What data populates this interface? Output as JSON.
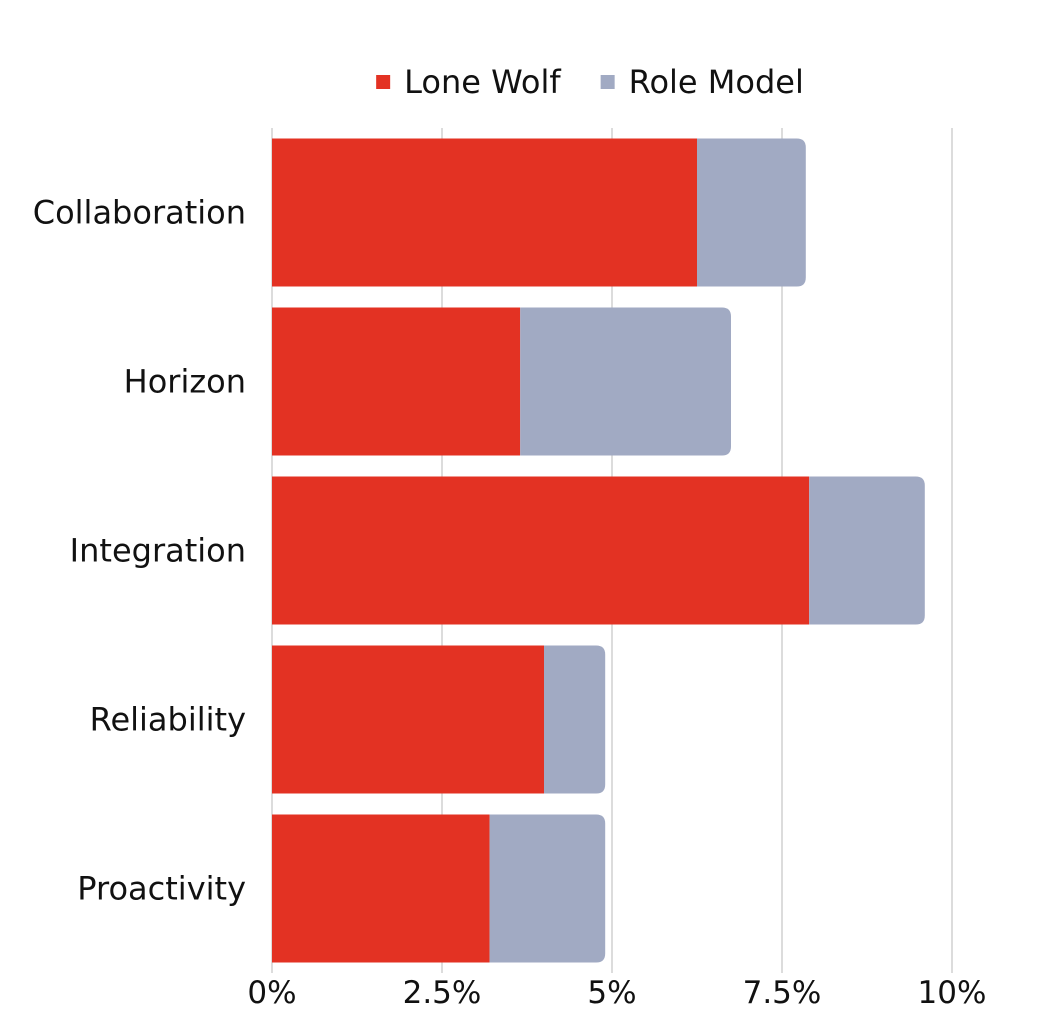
{
  "chart_data": {
    "type": "bar",
    "orientation": "horizontal",
    "stacked": true,
    "categories": [
      "Collaboration",
      "Horizon",
      "Integration",
      "Reliability",
      "Proactivity"
    ],
    "series": [
      {
        "name": "Lone Wolf",
        "color": "#e33223",
        "values": [
          6.25,
          3.65,
          7.9,
          4.0,
          3.2
        ]
      },
      {
        "name": "Role Model",
        "color": "#a1aac3",
        "values": [
          1.6,
          3.1,
          1.7,
          0.9,
          1.7
        ]
      }
    ],
    "xlim": [
      0,
      10
    ],
    "xticks": [
      0,
      2.5,
      5,
      7.5,
      10
    ],
    "xtick_labels": [
      "0%",
      "2.5%",
      "5%",
      "7.5%",
      "10%"
    ],
    "grid": "vertical",
    "legend": "top-center"
  }
}
